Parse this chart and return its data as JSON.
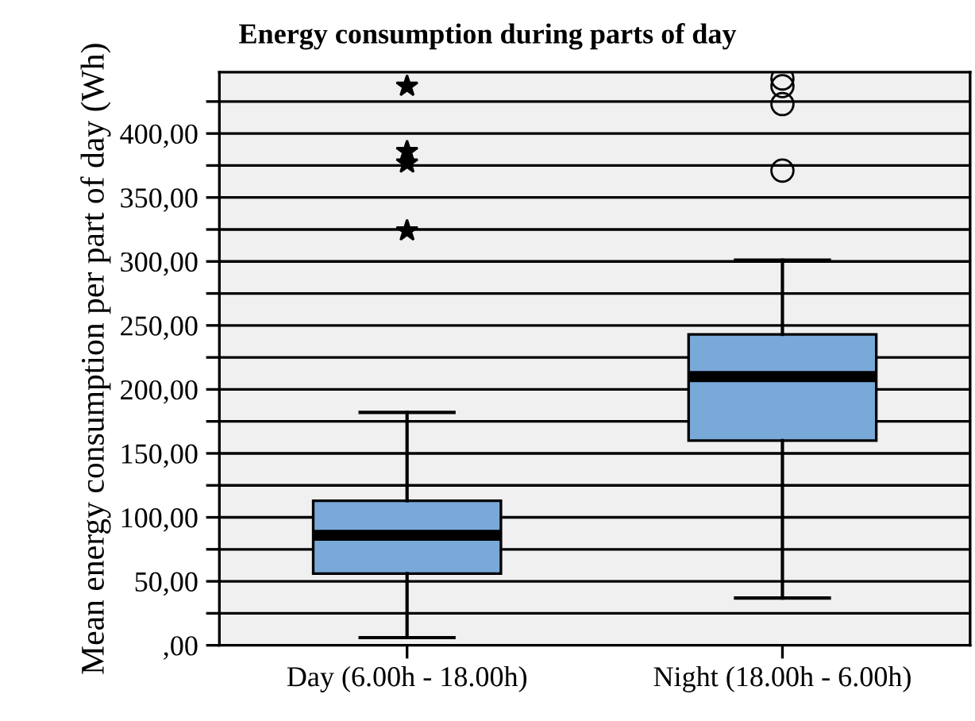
{
  "chart_data": {
    "type": "box",
    "title": "Energy consumption during parts of day",
    "ylabel": "Mean energy consumption per part of day (Wh)",
    "categories": [
      "Day (6.00h - 18.00h)",
      "Night (18.00h - 6.00h)"
    ],
    "series": [
      {
        "color": "#79a9d9",
        "marker": "star",
        "boxes": [
          {
            "low": 6,
            "q1": 56,
            "median": 86,
            "q3": 113,
            "high": 182,
            "outliers": [
              324,
              377,
              386,
              437
            ]
          },
          null
        ]
      },
      {
        "color": "#79a9d9",
        "marker": "circle",
        "boxes": [
          null,
          {
            "low": 37,
            "q1": 160,
            "median": 210,
            "q3": 243,
            "high": 301,
            "outliers": [
              371,
              423,
              437,
              443
            ]
          }
        ]
      }
    ],
    "ylim": [
      0,
      448
    ],
    "yticks": [
      {
        "value": 0,
        "label": ",00"
      },
      {
        "value": 25,
        "label": null
      },
      {
        "value": 50,
        "label": "50,00"
      },
      {
        "value": 75,
        "label": null
      },
      {
        "value": 100,
        "label": "100,00"
      },
      {
        "value": 125,
        "label": null
      },
      {
        "value": 150,
        "label": "150,00"
      },
      {
        "value": 175,
        "label": null
      },
      {
        "value": 200,
        "label": "200,00"
      },
      {
        "value": 225,
        "label": null
      },
      {
        "value": 250,
        "label": "250,00"
      },
      {
        "value": 275,
        "label": null
      },
      {
        "value": 300,
        "label": "300,00"
      },
      {
        "value": 325,
        "label": null
      },
      {
        "value": 350,
        "label": "350,00"
      },
      {
        "value": 375,
        "label": null
      },
      {
        "value": 400,
        "label": "400,00"
      },
      {
        "value": 425,
        "label": null
      }
    ],
    "grid": "y"
  }
}
